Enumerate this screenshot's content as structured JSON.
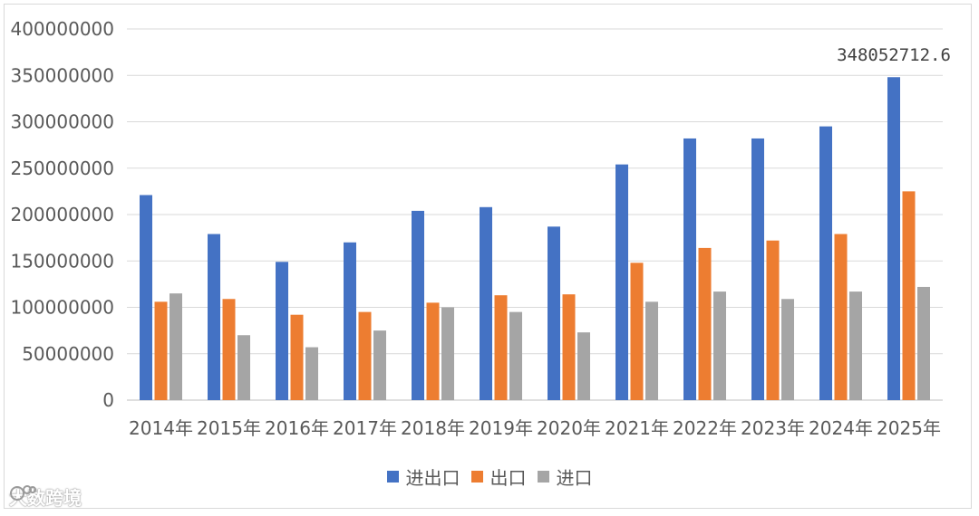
{
  "chart_data": {
    "type": "bar",
    "categories": [
      "2014年",
      "2015年",
      "2016年",
      "2017年",
      "2018年",
      "2019年",
      "2020年",
      "2021年",
      "2022年",
      "2023年",
      "2024年",
      "2025年"
    ],
    "series": [
      {
        "name": "进出口",
        "color": "#4472C4",
        "values": [
          221000000,
          179000000,
          149000000,
          170000000,
          204000000,
          208000000,
          187000000,
          254000000,
          282000000,
          282000000,
          295000000,
          348052712.6
        ]
      },
      {
        "name": "出口",
        "color": "#ED7D31",
        "values": [
          106000000,
          109000000,
          92000000,
          95000000,
          105000000,
          113000000,
          114000000,
          148000000,
          164000000,
          172000000,
          179000000,
          225000000
        ]
      },
      {
        "name": "进口",
        "color": "#A5A5A5",
        "values": [
          115000000,
          70000000,
          57000000,
          75000000,
          100000000,
          95000000,
          73000000,
          106000000,
          117000000,
          109000000,
          117000000,
          122000000
        ]
      }
    ],
    "yticks": [
      "0",
      "50000000",
      "100000000",
      "150000000",
      "200000000",
      "250000000",
      "300000000",
      "350000000",
      "400000000"
    ],
    "ylim": [
      0,
      400000000
    ],
    "data_labels": [
      {
        "series": 0,
        "index": 11,
        "text": "348052712.6"
      }
    ],
    "grid": true,
    "legend_position": "bottom"
  },
  "watermark": {
    "icon": "watermark-logo-icon",
    "text": "大数跨境"
  }
}
